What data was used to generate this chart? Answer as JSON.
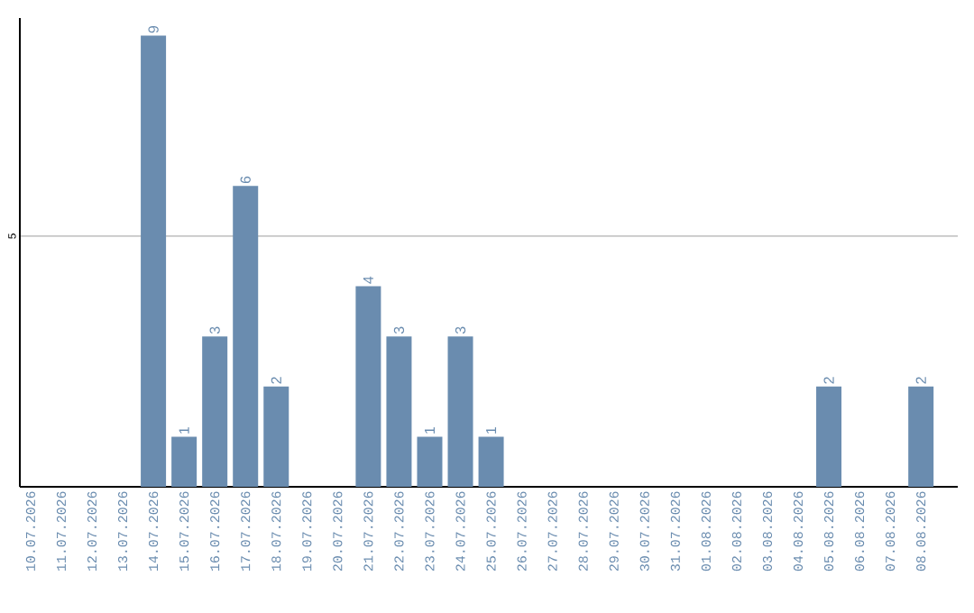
{
  "chart_data": {
    "type": "bar",
    "categories": [
      "10.07.2026",
      "11.07.2026",
      "12.07.2026",
      "13.07.2026",
      "14.07.2026",
      "15.07.2026",
      "16.07.2026",
      "17.07.2026",
      "18.07.2026",
      "19.07.2026",
      "20.07.2026",
      "21.07.2026",
      "22.07.2026",
      "23.07.2026",
      "24.07.2026",
      "25.07.2026",
      "26.07.2026",
      "27.07.2026",
      "28.07.2026",
      "29.07.2026",
      "30.07.2026",
      "31.07.2026",
      "01.08.2026",
      "02.08.2026",
      "03.08.2026",
      "04.08.2026",
      "05.08.2026",
      "06.08.2026",
      "07.08.2026",
      "08.08.2026"
    ],
    "values": [
      0,
      0,
      0,
      0,
      9,
      1,
      3,
      6,
      2,
      0,
      0,
      4,
      3,
      1,
      3,
      1,
      0,
      0,
      0,
      0,
      0,
      0,
      0,
      0,
      0,
      0,
      2,
      0,
      0,
      2
    ],
    "value_labels": [
      null,
      null,
      null,
      null,
      "9",
      "1",
      "3",
      "6",
      "2",
      null,
      null,
      "4",
      "3",
      "1",
      "3",
      "1",
      null,
      null,
      null,
      null,
      null,
      null,
      null,
      null,
      null,
      null,
      "2",
      null,
      null,
      "2"
    ],
    "color": "#6a8caf",
    "ylim": [
      0,
      9.35
    ],
    "yticks": [
      5
    ],
    "grid": "y"
  }
}
